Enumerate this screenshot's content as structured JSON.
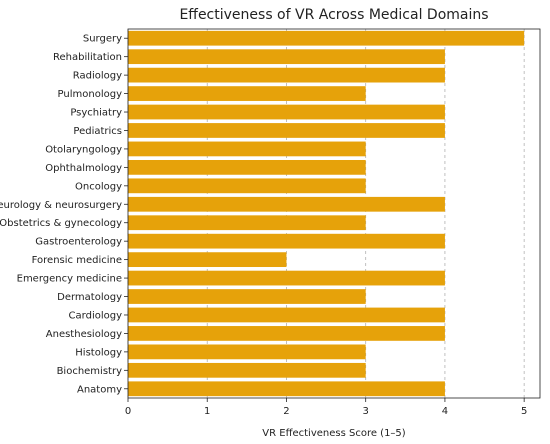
{
  "chart_data": {
    "type": "bar",
    "orientation": "horizontal",
    "title": "Effectiveness of VR Across Medical Domains",
    "xlabel": "VR Effectiveness Score (1–5)",
    "ylabel": "",
    "xlim": [
      0,
      5.2
    ],
    "xticks": [
      0,
      1,
      2,
      3,
      4,
      5
    ],
    "grid": true,
    "bar_color": "#E6A20A",
    "categories": [
      "Surgery",
      "Rehabilitation",
      "Radiology",
      "Pulmonology",
      "Psychiatry",
      "Pediatrics",
      "Otolaryngology",
      "Ophthalmology",
      "Oncology",
      "Neurology & neurosurgery",
      "Obstetrics & gynecology",
      "Gastroenterology",
      "Forensic medicine",
      "Emergency medicine",
      "Dermatology",
      "Cardiology",
      "Anesthesiology",
      "Histology",
      "Biochemistry",
      "Anatomy"
    ],
    "values": [
      5,
      4,
      4,
      3,
      4,
      4,
      3,
      3,
      3,
      4,
      3,
      4,
      2,
      4,
      3,
      4,
      4,
      3,
      3,
      4
    ]
  }
}
